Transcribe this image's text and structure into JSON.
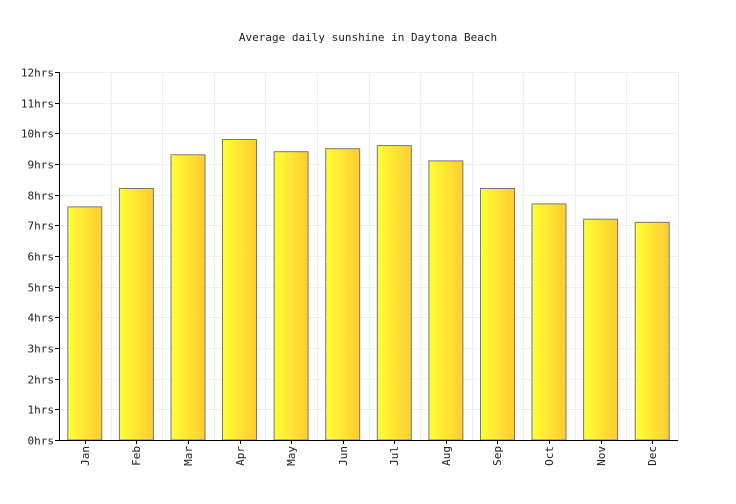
{
  "chart_data": {
    "type": "bar",
    "title": "Average daily sunshine in Daytona Beach",
    "xlabel": "",
    "ylabel": "",
    "categories": [
      "Jan",
      "Feb",
      "Mar",
      "Apr",
      "May",
      "Jun",
      "Jul",
      "Aug",
      "Sep",
      "Oct",
      "Nov",
      "Dec"
    ],
    "values": [
      7.6,
      8.2,
      9.3,
      9.8,
      9.4,
      9.5,
      9.6,
      9.1,
      8.2,
      7.7,
      7.2,
      7.1
    ],
    "ylim": [
      0,
      12
    ],
    "y_ticks": [
      {
        "value": 0,
        "label": "0hrs"
      },
      {
        "value": 1,
        "label": "1hrs"
      },
      {
        "value": 2,
        "label": "2hrs"
      },
      {
        "value": 3,
        "label": "3hrs"
      },
      {
        "value": 4,
        "label": "4hrs"
      },
      {
        "value": 5,
        "label": "5hrs"
      },
      {
        "value": 6,
        "label": "6hrs"
      },
      {
        "value": 7,
        "label": "7hrs"
      },
      {
        "value": 8,
        "label": "8hrs"
      },
      {
        "value": 9,
        "label": "9hrs"
      },
      {
        "value": 10,
        "label": "10hrs"
      },
      {
        "value": 11,
        "label": "11hrs"
      },
      {
        "value": 12,
        "label": "12hrs"
      }
    ],
    "grid": true,
    "legend": "none",
    "colors": {
      "bar_light": "#ffff33",
      "bar_dark": "#ffcc33",
      "bar_stroke": "#777777",
      "grid": "#eeeeee",
      "axis": "#000000"
    }
  }
}
